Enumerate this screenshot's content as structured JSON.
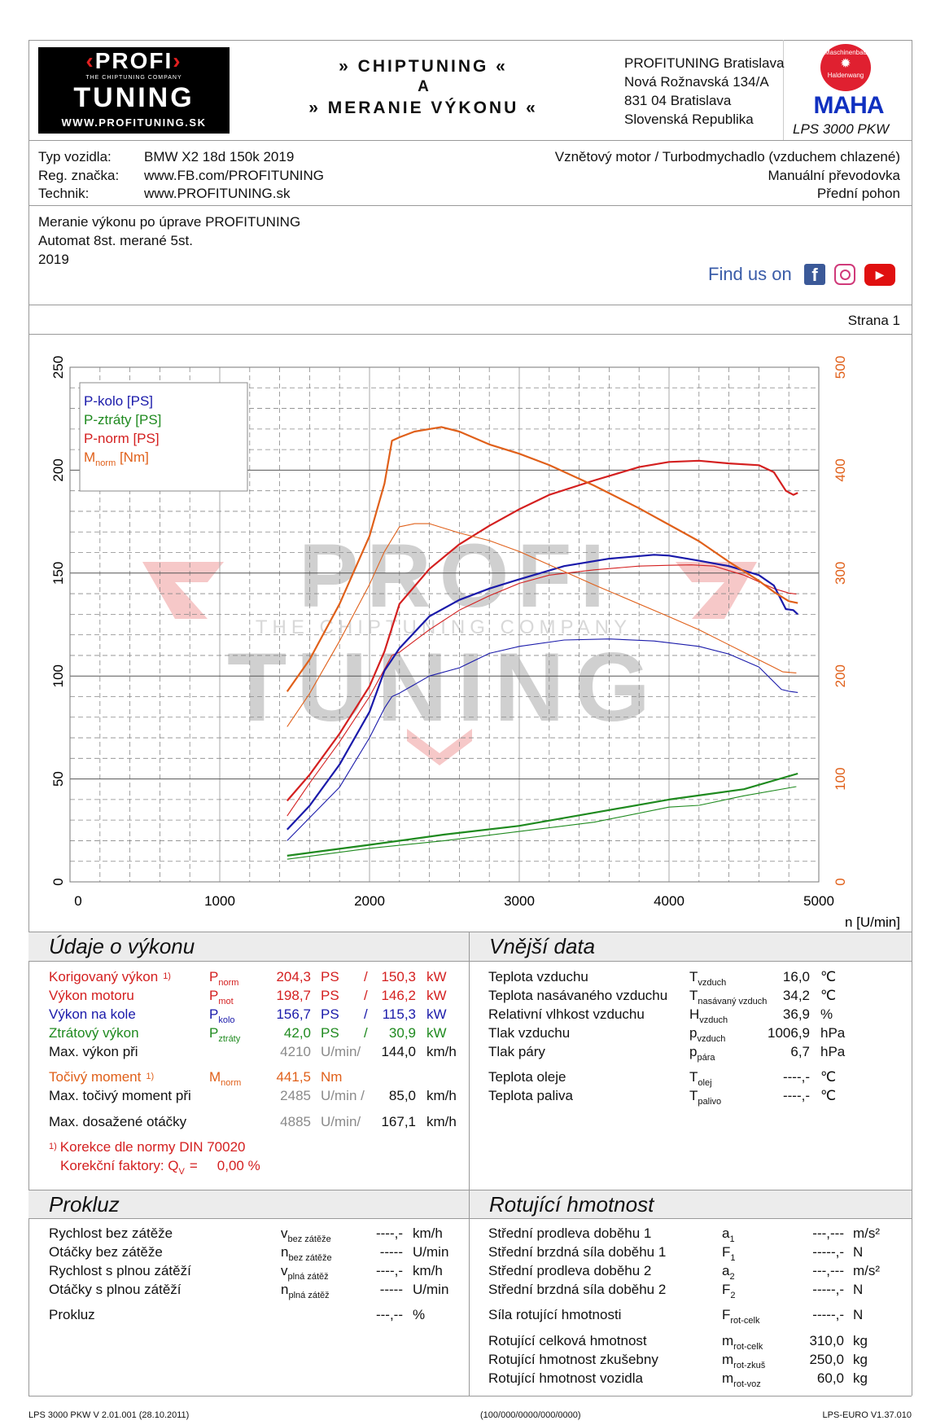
{
  "header": {
    "logo": {
      "top": "PROFI",
      "tagline": "THE CHIPTUNING COMPANY",
      "bottom": "TUNING",
      "url": "WWW.PROFITUNING.SK"
    },
    "title_line1": "» CHIPTUNING «",
    "title_line2": "A",
    "title_line3": "» MERANIE VÝKONU «",
    "address": [
      "PROFITUNING Bratislava",
      "Nová Rožnavská 134/A",
      "831 04 Bratislava",
      "Slovenská Republika"
    ],
    "maha": {
      "ring_top": "Maschinenbau",
      "ring_bottom": "Haldenwang",
      "brand": "MAHA"
    },
    "device": "LPS 3000 PKW"
  },
  "vehicle": {
    "rows": [
      {
        "label": "Typ vozidla:",
        "value": "BMW X2 18d 150k 2019"
      },
      {
        "label": "Reg. značka:",
        "value": "www.FB.com/PROFITUNING"
      },
      {
        "label": "Technik:",
        "value": "www.PROFITUNING.sk"
      }
    ],
    "right": [
      "Vznětový motor / Turbodmychadlo (vzduchem chlazené)",
      "Manuální převodovka",
      "Přední pohon"
    ]
  },
  "notes": [
    "Meranie výkonu po úprave PROFITUNING",
    "Automat 8st. merané 5st.",
    "2019"
  ],
  "social": {
    "find_us": "Find us on",
    "icons": [
      "facebook-icon",
      "instagram-icon",
      "youtube-icon"
    ]
  },
  "page_label": "Strana 1",
  "watermark": {
    "top": "PROFI",
    "tagline": "THE CHIPTUNING COMPANY",
    "bottom": "TUNING"
  },
  "colors": {
    "red": "#d42020",
    "blue": "#1a1aaa",
    "green": "#1f8a1f",
    "orange": "#e0601a",
    "gray": "#8a8a8a"
  },
  "chart_data": {
    "type": "line",
    "xlabel": "n [U/min]",
    "xlim": [
      0,
      5000
    ],
    "ylim_left": [
      0,
      250
    ],
    "ylim_right": [
      0,
      500
    ],
    "x_ticks": [
      "0",
      "1000",
      "2000",
      "3000",
      "4000",
      "5000"
    ],
    "y_ticks_left": [
      "0",
      "50",
      "100",
      "150",
      "200",
      "250"
    ],
    "y_ticks_right": [
      "0",
      "100",
      "200",
      "300",
      "400",
      "500"
    ],
    "grid": true,
    "legend_position": "top-left",
    "legend": [
      {
        "label": "P-kolo [PS]",
        "color": "#1a1aaa"
      },
      {
        "label": "P-ztráty [PS]",
        "color": "#1f8a1f"
      },
      {
        "label": "P-norm [PS]",
        "color": "#d42020"
      },
      {
        "label": "M",
        "sub": "norm",
        "suffix": " [Nm]",
        "color": "#e0601a"
      }
    ],
    "series": [
      {
        "name": "P-norm [PS]",
        "axis": "left",
        "color": "#d42020",
        "weight": "thick",
        "points": [
          [
            1450,
            39.4
          ],
          [
            1600,
            52
          ],
          [
            1800,
            72
          ],
          [
            2000,
            95
          ],
          [
            2100,
            112
          ],
          [
            2200,
            135
          ],
          [
            2400,
            152
          ],
          [
            2600,
            164
          ],
          [
            2800,
            173
          ],
          [
            3000,
            181
          ],
          [
            3200,
            188
          ],
          [
            3500,
            195
          ],
          [
            3800,
            201.5
          ],
          [
            4000,
            204
          ],
          [
            4200,
            204.6
          ],
          [
            4400,
            203.3
          ],
          [
            4600,
            202.4
          ],
          [
            4700,
            199
          ],
          [
            4780,
            190
          ],
          [
            4830,
            188
          ],
          [
            4860,
            189
          ]
        ]
      },
      {
        "axis": "left",
        "color": "#d42020",
        "weight": "thin",
        "points": [
          [
            1450,
            32
          ],
          [
            1600,
            48
          ],
          [
            1800,
            68
          ],
          [
            2000,
            90
          ],
          [
            2150,
            110
          ],
          [
            2200,
            111.6
          ],
          [
            2400,
            122.5
          ],
          [
            2600,
            132
          ],
          [
            2800,
            139
          ],
          [
            3000,
            145
          ],
          [
            3200,
            149
          ],
          [
            3500,
            151.6
          ],
          [
            3800,
            153.4
          ],
          [
            4000,
            153.8
          ],
          [
            4150,
            154
          ],
          [
            4300,
            153.4
          ],
          [
            4500,
            149
          ],
          [
            4700,
            142.5
          ],
          [
            4800,
            140.3
          ],
          [
            4850,
            139.8
          ]
        ]
      },
      {
        "name": "P-kolo [PS]",
        "axis": "left",
        "color": "#1a1aaa",
        "weight": "thick",
        "points": [
          [
            1450,
            25.4
          ],
          [
            1600,
            37
          ],
          [
            1800,
            57
          ],
          [
            2000,
            82.6
          ],
          [
            2100,
            102.6
          ],
          [
            2200,
            113.5
          ],
          [
            2400,
            129
          ],
          [
            2600,
            137
          ],
          [
            2800,
            142.5
          ],
          [
            3000,
            147
          ],
          [
            3300,
            153.4
          ],
          [
            3600,
            157
          ],
          [
            3900,
            158.9
          ],
          [
            4000,
            158.5
          ],
          [
            4200,
            156
          ],
          [
            4400,
            153.4
          ],
          [
            4600,
            149
          ],
          [
            4700,
            144
          ],
          [
            4780,
            132.5
          ],
          [
            4830,
            132
          ],
          [
            4860,
            130
          ]
        ]
      },
      {
        "axis": "left",
        "color": "#1a1aaa",
        "weight": "thin",
        "points": [
          [
            1450,
            20
          ],
          [
            1800,
            46
          ],
          [
            2000,
            70
          ],
          [
            2100,
            84.4
          ],
          [
            2150,
            90
          ],
          [
            2200,
            91.7
          ],
          [
            2400,
            100
          ],
          [
            2600,
            104
          ],
          [
            2800,
            111
          ],
          [
            3000,
            114.4
          ],
          [
            3300,
            117.5
          ],
          [
            3600,
            118
          ],
          [
            3900,
            117
          ],
          [
            4200,
            114.4
          ],
          [
            4400,
            110.7
          ],
          [
            4600,
            104.4
          ],
          [
            4750,
            93.5
          ],
          [
            4800,
            92.6
          ],
          [
            4860,
            92
          ]
        ]
      },
      {
        "name": "P-ztráty [PS]",
        "axis": "left",
        "color": "#1f8a1f",
        "weight": "thick",
        "points": [
          [
            1450,
            12.7
          ],
          [
            2000,
            18
          ],
          [
            2500,
            23
          ],
          [
            3000,
            27.2
          ],
          [
            3500,
            33.6
          ],
          [
            4000,
            40
          ],
          [
            4500,
            45
          ],
          [
            4860,
            52.6
          ]
        ]
      },
      {
        "axis": "left",
        "color": "#1f8a1f",
        "weight": "thin",
        "points": [
          [
            1450,
            11
          ],
          [
            2000,
            16.3
          ],
          [
            2500,
            20
          ],
          [
            3000,
            24.5
          ],
          [
            3500,
            29
          ],
          [
            4000,
            36.3
          ],
          [
            4200,
            37.2
          ],
          [
            4500,
            41.8
          ],
          [
            4850,
            46.3
          ]
        ]
      },
      {
        "name": "Mnorm [Nm]",
        "axis": "right",
        "color": "#e0601a",
        "weight": "thick",
        "points": [
          [
            1450,
            185
          ],
          [
            1600,
            216
          ],
          [
            1800,
            270
          ],
          [
            2000,
            336
          ],
          [
            2100,
            387
          ],
          [
            2150,
            428.6
          ],
          [
            2200,
            432
          ],
          [
            2300,
            437.5
          ],
          [
            2480,
            441.9
          ],
          [
            2600,
            437.5
          ],
          [
            2800,
            425
          ],
          [
            3000,
            416
          ],
          [
            3200,
            405
          ],
          [
            3500,
            385
          ],
          [
            3800,
            363
          ],
          [
            4000,
            347
          ],
          [
            4200,
            331
          ],
          [
            4400,
            311
          ],
          [
            4600,
            292.6
          ],
          [
            4700,
            281.7
          ],
          [
            4800,
            272.7
          ],
          [
            4860,
            270.9
          ]
        ]
      },
      {
        "axis": "right",
        "color": "#e0601a",
        "weight": "thin",
        "points": [
          [
            1450,
            150.7
          ],
          [
            1600,
            183
          ],
          [
            1800,
            234
          ],
          [
            2000,
            289
          ],
          [
            2100,
            321
          ],
          [
            2200,
            345
          ],
          [
            2300,
            348
          ],
          [
            2400,
            348
          ],
          [
            2600,
            339
          ],
          [
            2800,
            331.6
          ],
          [
            3000,
            321
          ],
          [
            3500,
            288.5
          ],
          [
            4000,
            257.6
          ],
          [
            4200,
            244.9
          ],
          [
            4500,
            223
          ],
          [
            4700,
            208.5
          ],
          [
            4760,
            204
          ],
          [
            4850,
            203
          ]
        ]
      }
    ]
  },
  "performance": {
    "title": "Údaje o výkonu",
    "rows": [
      {
        "label": "Korigovaný výkon",
        "note": "1)",
        "sym": "P",
        "sub": "norm",
        "v1": "204,3",
        "u1": "PS",
        "sep": "/",
        "v2": "150,3",
        "u2": "kW",
        "color": "#d42020"
      },
      {
        "label": "Výkon motoru",
        "sym": "P",
        "sub": "mot",
        "v1": "198,7",
        "u1": "PS",
        "sep": "/",
        "v2": "146,2",
        "u2": "kW",
        "color": "#d42020"
      },
      {
        "label": "Výkon na kole",
        "sym": "P",
        "sub": "kolo",
        "v1": "156,7",
        "u1": "PS",
        "sep": "/",
        "v2": "115,3",
        "u2": "kW",
        "color": "#1a1aaa"
      },
      {
        "label": "Ztrátový výkon",
        "sym": "P",
        "sub": "ztráty",
        "v1": "42,0",
        "u1": "PS",
        "sep": "/",
        "v2": "30,9",
        "u2": "kW",
        "color": "#1f8a1f"
      },
      {
        "label": "Max. výkon při",
        "v1": "4210",
        "u1": "U/min/",
        "v2": "144,0",
        "u2": "km/h",
        "color": "#111",
        "rpm": true
      },
      {
        "label": "Točivý moment",
        "note": "1)",
        "sym": "M",
        "sub": "norm",
        "v1": "441,5",
        "u1": "Nm",
        "color": "#e0601a"
      },
      {
        "label": "Max. točivý moment při",
        "v1": "2485",
        "u1": "U/min /",
        "v2": "85,0",
        "u2": "km/h",
        "color": "#111",
        "rpm": true
      },
      {
        "label": "Max. dosažené otáčky",
        "v1": "4885",
        "u1": "U/min/",
        "v2": "167,1",
        "u2": "km/h",
        "color": "#111",
        "rpm": true
      }
    ],
    "footnote_mark": "1)",
    "footnote": "Korekce dle normy DIN 70020",
    "factor_label": "Korekční faktory: Q",
    "factor_sub": "V",
    "factor_eq": "=",
    "factor_value": "0,00 %"
  },
  "external": {
    "title": "Vnější data",
    "rows": [
      {
        "label": "Teplota vzduchu",
        "sym": "T",
        "sub": "vzduch",
        "value": "16,0",
        "unit": "℃"
      },
      {
        "label": "Teplota nasávaného vzduchu",
        "sym": "T",
        "sub": "nasávaný vzduch",
        "value": "34,2",
        "unit": "℃"
      },
      {
        "label": "Relativní vlhkost vzduchu",
        "sym": "H",
        "sub": "vzduch",
        "value": "36,9",
        "unit": "%"
      },
      {
        "label": "Tlak vzduchu",
        "sym": "p",
        "sub": "vzduch",
        "value": "1006,9",
        "unit": "hPa"
      },
      {
        "label": "Tlak páry",
        "sym": "p",
        "sub": "pára",
        "value": "6,7",
        "unit": "hPa"
      },
      {
        "label": "Teplota oleje",
        "sym": "T",
        "sub": "olej",
        "value": "----,-",
        "unit": "℃"
      },
      {
        "label": "Teplota paliva",
        "sym": "T",
        "sub": "palivo",
        "value": "----,-",
        "unit": "℃"
      }
    ]
  },
  "slip": {
    "title": "Prokluz",
    "rows": [
      {
        "label": "Rychlost bez zátěže",
        "sym": "v",
        "sub": "bez zátěže",
        "value": "----,-",
        "unit": "km/h"
      },
      {
        "label": "Otáčky bez zátěže",
        "sym": "n",
        "sub": "bez zátěže",
        "value": "-----",
        "unit": "U/min"
      },
      {
        "label": "Rychlost s plnou zátěží",
        "sym": "v",
        "sub": "plná zátěž",
        "value": "----,-",
        "unit": "km/h"
      },
      {
        "label": "Otáčky s plnou zátěží",
        "sym": "n",
        "sub": "plná zátěž",
        "value": "-----",
        "unit": "U/min"
      },
      {
        "label": "Prokluz",
        "value": "---,--",
        "unit": "%"
      }
    ]
  },
  "rotating": {
    "title": "Rotující hmotnost",
    "rows": [
      {
        "label": "Střední prodleva doběhu 1",
        "sym": "a",
        "sub": "1",
        "value": "---,---",
        "unit": "m/s²"
      },
      {
        "label": "Střední brzdná síla doběhu 1",
        "sym": "F",
        "sub": "1",
        "value": "-----,-",
        "unit": "N"
      },
      {
        "label": "Střední prodleva doběhu 2",
        "sym": "a",
        "sub": "2",
        "value": "---,---",
        "unit": "m/s²"
      },
      {
        "label": "Střední brzdná síla doběhu 2",
        "sym": "F",
        "sub": "2",
        "value": "-----,-",
        "unit": "N"
      },
      {
        "label": "Síla rotující hmotnosti",
        "sym": "F",
        "sub": "rot-celk",
        "value": "-----,-",
        "unit": "N"
      },
      {
        "label": "Rotující celková hmotnost",
        "sym": "m",
        "sub": "rot-celk",
        "value": "310,0",
        "unit": "kg"
      },
      {
        "label": "Rotující hmotnost zkušebny",
        "sym": "m",
        "sub": "rot-zkuš",
        "value": "250,0",
        "unit": "kg"
      },
      {
        "label": "Rotující hmotnost vozidla",
        "sym": "m",
        "sub": "rot-voz",
        "value": "60,0",
        "unit": "kg"
      }
    ]
  },
  "footer": {
    "left": "LPS 3000 PKW V 2.01.001 (28.10.2011)",
    "center": "(100/000/0000/000/0000)",
    "right": "LPS-EURO V1.37.010"
  }
}
